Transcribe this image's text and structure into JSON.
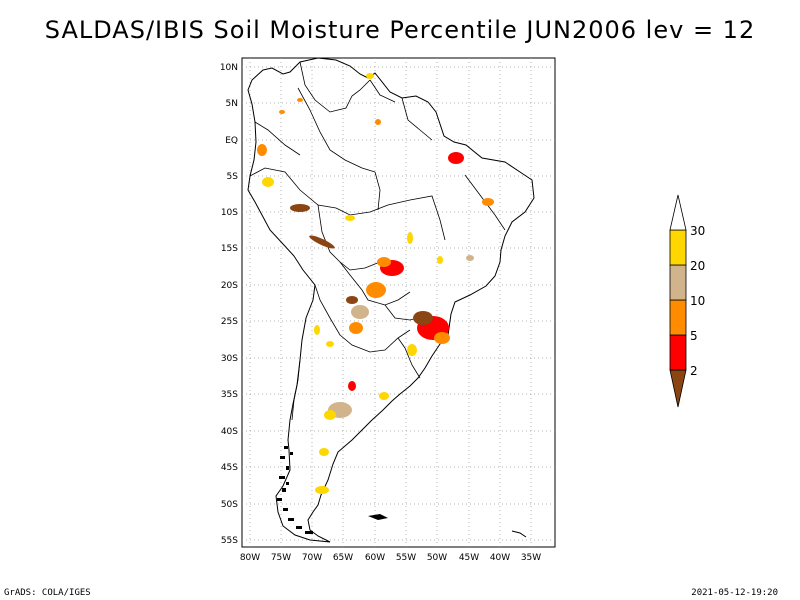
{
  "title": "SALDAS/IBIS Soil Moisture Percentile JUN2006 lev = 12",
  "footer_left": "GrADS: COLA/IGES",
  "footer_right": "2021-05-12-19:20",
  "lat_labels": [
    "10N",
    "5N",
    "EQ",
    "5S",
    "10S",
    "15S",
    "20S",
    "25S",
    "30S",
    "35S",
    "40S",
    "45S",
    "50S",
    "55S"
  ],
  "lon_labels": [
    "80W",
    "75W",
    "70W",
    "65W",
    "60W",
    "55W",
    "50W",
    "45W",
    "40W",
    "35W"
  ],
  "colorbar": {
    "labels": [
      "2",
      "5",
      "10",
      "20",
      "30"
    ],
    "colors": [
      "#8B4513",
      "#FF0000",
      "#FF8C00",
      "#D2B48C",
      "#FFD700",
      "#FFFFFF"
    ]
  },
  "map": {
    "projection": "lat-lon",
    "lon_range": [
      -81,
      -30
    ],
    "lat_range": [
      -56,
      12
    ],
    "grid": true,
    "region": "South America"
  }
}
